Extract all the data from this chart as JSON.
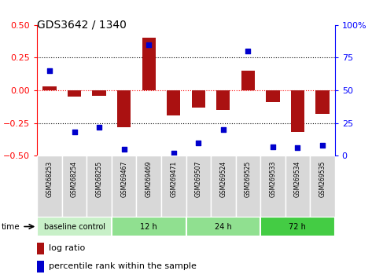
{
  "title": "GDS3642 / 1340",
  "samples": [
    "GSM268253",
    "GSM268254",
    "GSM268255",
    "GSM269467",
    "GSM269469",
    "GSM269471",
    "GSM269507",
    "GSM269524",
    "GSM269525",
    "GSM269533",
    "GSM269534",
    "GSM269535"
  ],
  "log_ratio": [
    0.03,
    -0.05,
    -0.04,
    -0.28,
    0.4,
    -0.19,
    -0.13,
    -0.15,
    0.15,
    -0.09,
    -0.32,
    -0.18
  ],
  "percentile_rank": [
    65,
    18,
    22,
    5,
    85,
    2,
    10,
    20,
    80,
    7,
    6,
    8
  ],
  "groups": [
    {
      "label": "baseline control",
      "start": 0,
      "end": 3,
      "color": "#c8f0c8"
    },
    {
      "label": "12 h",
      "start": 3,
      "end": 6,
      "color": "#90e090"
    },
    {
      "label": "24 h",
      "start": 6,
      "end": 9,
      "color": "#90e090"
    },
    {
      "label": "72 h",
      "start": 9,
      "end": 12,
      "color": "#44cc44"
    }
  ],
  "bar_color": "#aa1111",
  "dot_color": "#0000cc",
  "ylim_left": [
    -0.5,
    0.5
  ],
  "ylim_right": [
    0,
    100
  ],
  "yticks_left": [
    -0.5,
    -0.25,
    0,
    0.25,
    0.5
  ],
  "yticks_right": [
    0,
    25,
    50,
    75,
    100
  ],
  "dotted_lines": [
    -0.25,
    0,
    0.25
  ],
  "col_bg_color": "#d8d8d8",
  "col_border_color": "#ffffff",
  "plot_bg": "#ffffff"
}
